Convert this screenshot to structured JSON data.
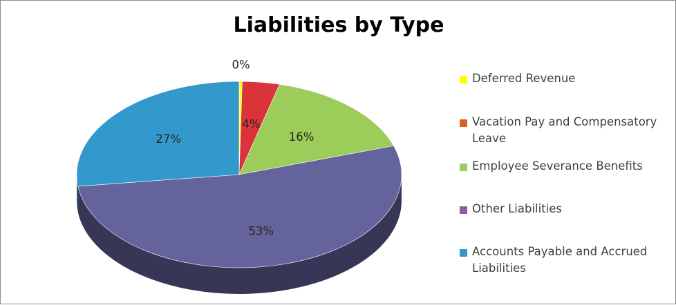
{
  "chart_data": {
    "type": "pie",
    "title": "Liabilities by Type",
    "categories": [
      "Deferred Revenue",
      "Vacation Pay and Compensatory Leave",
      "Employee Severance Benefits",
      "Other Liabilities",
      "Accounts Payable and Accrued Liabilities"
    ],
    "values": [
      0.3,
      3.7,
      16,
      53,
      27
    ],
    "labels": [
      "0%",
      "4%",
      "16%",
      "53%",
      "27%"
    ],
    "colors": [
      "#ffff00",
      "#d9343a",
      "#9ccc5a",
      "#65639c",
      "#3398cc"
    ],
    "legend_colors": [
      "#ffff00",
      "#d9601f",
      "#9ccc5a",
      "#8c5fa0",
      "#3398cc"
    ],
    "legend_position": "right",
    "three_d": true
  }
}
